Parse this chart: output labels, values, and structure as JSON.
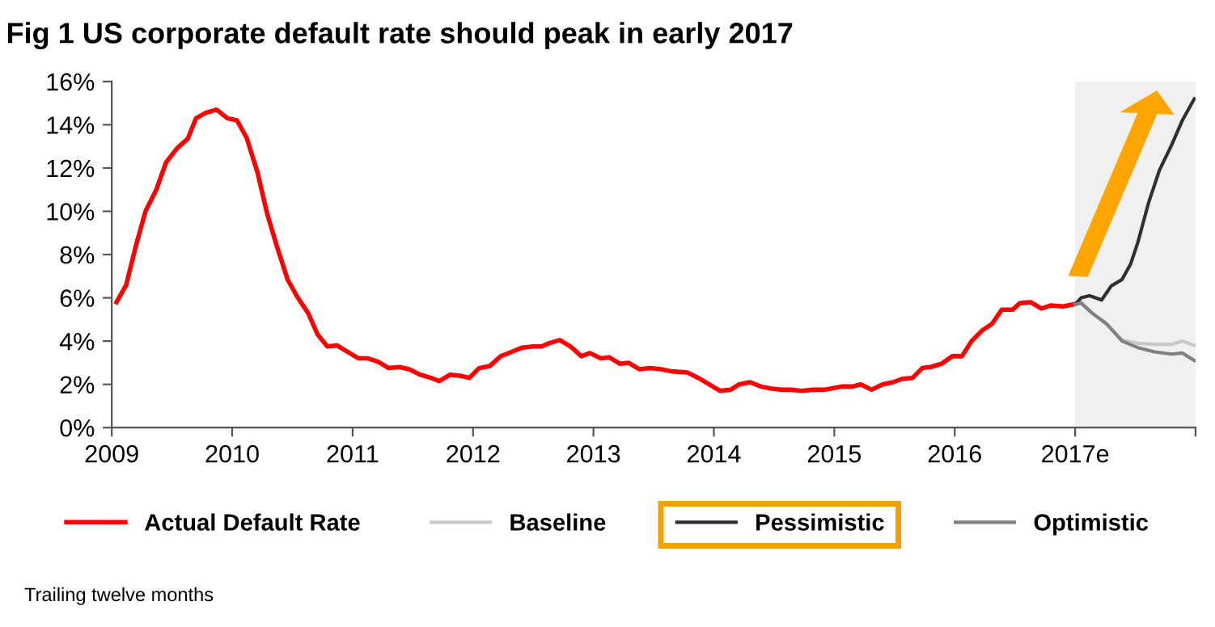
{
  "chart_data": {
    "type": "line",
    "title": "Fig 1 US corporate default rate should peak in early 2017",
    "xlim": [
      2009,
      2018
    ],
    "xticks": [
      2009,
      2010,
      2011,
      2012,
      2013,
      2014,
      2015,
      2016,
      {
        "value": 2017,
        "label": "2017e"
      },
      {
        "value": 2018,
        "label": null
      }
    ],
    "ylim": [
      0,
      16
    ],
    "yticks": [
      {
        "value": 0,
        "label": "0%"
      },
      {
        "value": 2,
        "label": "2%"
      },
      {
        "value": 4,
        "label": "4%"
      },
      {
        "value": 6,
        "label": "6%"
      },
      {
        "value": 8,
        "label": "8%"
      },
      {
        "value": 10,
        "label": "10%"
      },
      {
        "value": 12,
        "label": "12%"
      },
      {
        "value": 14,
        "label": "14%"
      },
      {
        "value": 16,
        "label": "16%"
      }
    ],
    "grid": false,
    "legend": "bottom",
    "bands": [
      {
        "axis": "x",
        "from": 2017,
        "to": 2018,
        "color": "#f0f0f0"
      }
    ],
    "series": [
      {
        "name": "Actual Default Rate",
        "color": "#ff0000",
        "x": [
          2009.04,
          2009.12,
          2009.2,
          2009.28,
          2009.37,
          2009.45,
          2009.54,
          2009.63,
          2009.7,
          2009.78,
          2009.87,
          2009.96,
          2010.04,
          2010.12,
          2010.21,
          2010.29,
          2010.37,
          2010.46,
          2010.54,
          2010.63,
          2010.71,
          2010.79,
          2010.87,
          2010.96,
          2011.05,
          2011.13,
          2011.21,
          2011.3,
          2011.39,
          2011.47,
          2011.56,
          2011.65,
          2011.72,
          2011.81,
          2011.89,
          2011.97,
          2012.05,
          2012.14,
          2012.23,
          2012.32,
          2012.41,
          2012.5,
          2012.57,
          2012.63,
          2012.72,
          2012.81,
          2012.9,
          2012.97,
          2013.06,
          2013.13,
          2013.22,
          2013.29,
          2013.38,
          2013.47,
          2013.56,
          2013.65,
          2013.78,
          2013.87,
          2013.96,
          2014.05,
          2014.14,
          2014.21,
          2014.3,
          2014.39,
          2014.48,
          2014.57,
          2014.64,
          2014.73,
          2014.82,
          2014.91,
          2014.97,
          2015.06,
          2015.15,
          2015.22,
          2015.31,
          2015.4,
          2015.49,
          2015.56,
          2015.65,
          2015.73,
          2015.8,
          2015.89,
          2015.98,
          2016.06,
          2016.14,
          2016.23,
          2016.31,
          2016.39,
          2016.48,
          2016.54,
          2016.63,
          2016.72,
          2016.8,
          2016.9,
          2016.99
        ],
        "values": [
          5.8,
          6.6,
          8.4,
          10.0,
          11.0,
          12.25,
          12.9,
          13.35,
          14.3,
          14.55,
          14.7,
          14.3,
          14.2,
          13.4,
          11.8,
          9.9,
          8.4,
          6.85,
          6.05,
          5.3,
          4.3,
          3.75,
          3.8,
          3.5,
          3.2,
          3.2,
          3.05,
          2.75,
          2.8,
          2.7,
          2.45,
          2.3,
          2.15,
          2.45,
          2.4,
          2.3,
          2.75,
          2.85,
          3.3,
          3.5,
          3.7,
          3.75,
          3.75,
          3.9,
          4.05,
          3.75,
          3.3,
          3.45,
          3.2,
          3.25,
          2.95,
          3.0,
          2.7,
          2.75,
          2.7,
          2.6,
          2.55,
          2.3,
          2.0,
          1.7,
          1.75,
          2.0,
          2.1,
          1.9,
          1.8,
          1.75,
          1.75,
          1.7,
          1.75,
          1.75,
          1.8,
          1.9,
          1.9,
          2.0,
          1.75,
          2.0,
          2.1,
          2.25,
          2.3,
          2.75,
          2.8,
          2.95,
          3.3,
          3.3,
          4.0,
          4.5,
          4.8,
          5.45,
          5.45,
          5.75,
          5.8,
          5.5,
          5.65,
          5.6,
          5.7
        ]
      },
      {
        "name": "Baseline",
        "color": "#c8c8c8",
        "x": [
          2017.0,
          2017.05,
          2017.14,
          2017.26,
          2017.39,
          2017.52,
          2017.66,
          2017.8,
          2017.89,
          2017.99
        ],
        "values": [
          5.7,
          5.8,
          5.3,
          4.8,
          4.05,
          3.9,
          3.85,
          3.85,
          4.0,
          3.8
        ]
      },
      {
        "name": "Pessimistic",
        "color": "#303030",
        "x": [
          2017.0,
          2017.05,
          2017.12,
          2017.22,
          2017.3,
          2017.39,
          2017.46,
          2017.52,
          2017.61,
          2017.7,
          2017.8,
          2017.89,
          2017.99
        ],
        "values": [
          5.7,
          6.0,
          6.1,
          5.9,
          6.55,
          6.85,
          7.55,
          8.55,
          10.4,
          11.9,
          13.05,
          14.2,
          15.2
        ]
      },
      {
        "name": "Optimistic",
        "color": "#808080",
        "x": [
          2017.0,
          2017.05,
          2017.14,
          2017.26,
          2017.39,
          2017.52,
          2017.66,
          2017.8,
          2017.89,
          2017.99
        ],
        "values": [
          5.7,
          5.75,
          5.3,
          4.8,
          4.0,
          3.7,
          3.5,
          3.4,
          3.45,
          3.1
        ]
      }
    ],
    "annotations": [
      "Trailing twelve months"
    ]
  }
}
